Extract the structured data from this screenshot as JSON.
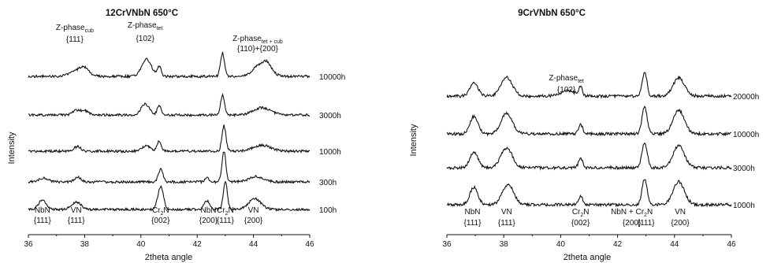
{
  "chart_data": [
    {
      "type": "line",
      "title": "12CrVNbN 650°C",
      "xlabel": "2theta angle",
      "ylabel": "Intensity",
      "xlim": [
        36,
        46
      ],
      "xticks": [
        "36",
        "38",
        "40",
        "42",
        "44",
        "46"
      ],
      "series": [
        {
          "name": "10000h",
          "peaks": [
            [
              37.8,
              0.45,
              0.28
            ],
            [
              38.0,
              0.35,
              0.15
            ],
            [
              40.2,
              1.3,
              0.17
            ],
            [
              40.65,
              0.75,
              0.07
            ],
            [
              42.9,
              1.75,
              0.07
            ],
            [
              44.3,
              0.95,
              0.28
            ],
            [
              44.5,
              0.35,
              0.12
            ]
          ]
        },
        {
          "name": "3000h",
          "peaks": [
            [
              37.7,
              0.35,
              0.13
            ],
            [
              38.0,
              0.3,
              0.13
            ],
            [
              40.15,
              0.8,
              0.15
            ],
            [
              40.65,
              0.7,
              0.07
            ],
            [
              42.9,
              1.5,
              0.07
            ],
            [
              44.3,
              0.55,
              0.3
            ]
          ]
        },
        {
          "name": "1000h",
          "peaks": [
            [
              37.75,
              0.35,
              0.12
            ],
            [
              40.2,
              0.4,
              0.15
            ],
            [
              40.65,
              0.8,
              0.07
            ],
            [
              42.95,
              1.9,
              0.07
            ],
            [
              44.3,
              0.45,
              0.3
            ]
          ]
        },
        {
          "name": "300h",
          "peaks": [
            [
              36.55,
              0.3,
              0.15
            ],
            [
              37.75,
              0.35,
              0.12
            ],
            [
              40.7,
              0.95,
              0.08
            ],
            [
              42.35,
              0.3,
              0.08
            ],
            [
              42.95,
              2.3,
              0.07
            ],
            [
              44.1,
              0.4,
              0.25
            ]
          ]
        },
        {
          "name": "100h",
          "peaks": [
            [
              36.5,
              0.7,
              0.14
            ],
            [
              37.7,
              0.55,
              0.17
            ],
            [
              40.7,
              1.7,
              0.1
            ],
            [
              42.35,
              0.65,
              0.1
            ],
            [
              43.0,
              2.1,
              0.07
            ],
            [
              44.05,
              0.8,
              0.22
            ]
          ]
        }
      ],
      "annotations": [
        {
          "text": "Z-phase",
          "sub": "cub",
          "hkl": "{111}",
          "x": 37.65
        },
        {
          "text": "Z-phase",
          "sub": "tet",
          "hkl": "{102}",
          "x": 40.15
        },
        {
          "text": "Z-phase",
          "sub": "tet + cub",
          "hkl": "{110}+{200}",
          "x": 44.15
        }
      ],
      "peak_labels": [
        {
          "text": "NbN",
          "hkl": "{111}",
          "x": 36.5
        },
        {
          "text": "VN",
          "hkl": "{111}",
          "x": 37.7
        },
        {
          "text": "Cr",
          "sub": "2",
          "text2": "N",
          "hkl": "{002}",
          "x": 40.7
        },
        {
          "text": "NbN",
          "hkl": "{200}",
          "x": 42.4
        },
        {
          "text": "Cr",
          "sub": "2",
          "text2": "N",
          "hkl": "{111}",
          "x": 43.0
        },
        {
          "text": "VN",
          "hkl": "{200}",
          "x": 44.0
        }
      ]
    },
    {
      "type": "line",
      "title": "9CrVNbN 650°C",
      "xlabel": "2theta angle",
      "ylabel": "Intensity",
      "xlim": [
        36,
        46
      ],
      "xticks": [
        "36",
        "38",
        "40",
        "42",
        "44",
        "46"
      ],
      "series": [
        {
          "name": "20000h",
          "peaks": [
            [
              36.95,
              0.9,
              0.14
            ],
            [
              38.1,
              1.2,
              0.2
            ],
            [
              40.25,
              0.35,
              0.25
            ],
            [
              40.7,
              0.55,
              0.06
            ],
            [
              42.95,
              1.55,
              0.08
            ],
            [
              44.15,
              1.15,
              0.2
            ]
          ]
        },
        {
          "name": "10000h",
          "peaks": [
            [
              36.95,
              1.1,
              0.14
            ],
            [
              38.1,
              1.3,
              0.2
            ],
            [
              40.7,
              0.6,
              0.07
            ],
            [
              42.95,
              1.7,
              0.09
            ],
            [
              44.15,
              1.5,
              0.2
            ]
          ]
        },
        {
          "name": "3000h",
          "peaks": [
            [
              36.95,
              1.0,
              0.14
            ],
            [
              38.1,
              1.25,
              0.2
            ],
            [
              40.7,
              0.6,
              0.07
            ],
            [
              42.95,
              1.6,
              0.09
            ],
            [
              44.15,
              1.4,
              0.2
            ]
          ]
        },
        {
          "name": "1000h",
          "peaks": [
            [
              36.95,
              1.1,
              0.14
            ],
            [
              38.15,
              1.3,
              0.2
            ],
            [
              40.7,
              0.55,
              0.07
            ],
            [
              42.95,
              1.65,
              0.09
            ],
            [
              44.15,
              1.45,
              0.2
            ]
          ]
        }
      ],
      "annotations": [
        {
          "text": "Z-phase",
          "sub": "tet",
          "hkl": "{102}",
          "x": 40.2
        }
      ],
      "peak_labels": [
        {
          "text": "NbN",
          "hkl": "{111}",
          "x": 36.9
        },
        {
          "text": "VN",
          "hkl": "{111}",
          "x": 38.1
        },
        {
          "text": "Cr",
          "sub": "2",
          "text2": "N",
          "hkl": "{002}",
          "x": 40.7
        },
        {
          "text": "NbN + Cr",
          "sub": "2",
          "text2": "N",
          "hkl": "{200}",
          "hkl2": "{111}",
          "x": 42.5,
          "x2": 43.0
        },
        {
          "text": "VN",
          "hkl": "{200}",
          "x": 44.2
        }
      ]
    }
  ]
}
